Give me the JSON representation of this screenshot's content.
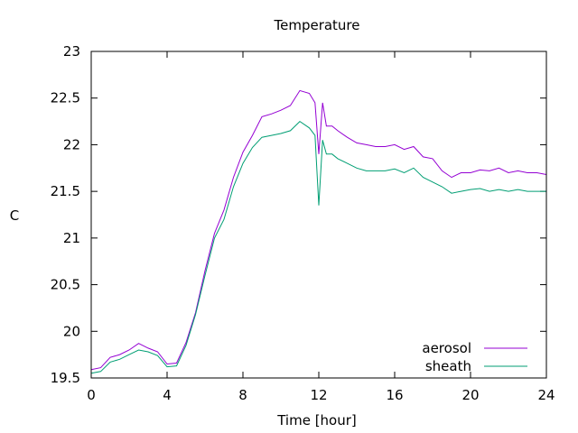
{
  "chart_data": {
    "type": "line",
    "title": "Temperature",
    "xlabel": "Time [hour]",
    "ylabel": "C",
    "xlim": [
      0,
      24
    ],
    "ylim": [
      19.5,
      23
    ],
    "xticks": [
      0,
      4,
      8,
      12,
      16,
      20,
      24
    ],
    "xtick_labels": [
      "0",
      "4",
      "8",
      "12",
      "16",
      "20",
      "24"
    ],
    "yticks": [
      19.5,
      20,
      20.5,
      21,
      21.5,
      22,
      22.5,
      23
    ],
    "ytick_labels": [
      "19.5",
      "20",
      "20.5",
      "21",
      "21.5",
      "22",
      "22.5",
      "23"
    ],
    "grid": false,
    "legend": "bottom-right",
    "series": [
      {
        "name": "aerosol",
        "color": "#9400d3",
        "x": [
          0,
          0.5,
          1,
          1.5,
          2,
          2.5,
          3,
          3.5,
          4,
          4.5,
          5,
          5.5,
          6,
          6.5,
          7,
          7.5,
          8,
          8.5,
          9,
          9.5,
          10,
          10.5,
          11,
          11.5,
          11.8,
          12,
          12.2,
          12.4,
          12.7,
          13,
          13.5,
          14,
          14.5,
          15,
          15.5,
          16,
          16.5,
          17,
          17.5,
          18,
          18.5,
          19,
          19.5,
          20,
          20.5,
          21,
          21.5,
          22,
          22.5,
          23,
          23.5,
          24
        ],
        "y": [
          19.59,
          19.61,
          19.72,
          19.75,
          19.8,
          19.87,
          19.82,
          19.78,
          19.65,
          19.66,
          19.88,
          20.2,
          20.65,
          21.05,
          21.3,
          21.65,
          21.92,
          22.1,
          22.3,
          22.33,
          22.37,
          22.42,
          22.58,
          22.55,
          22.45,
          21.9,
          22.45,
          22.2,
          22.2,
          22.15,
          22.08,
          22.02,
          22.0,
          21.98,
          21.98,
          22.0,
          21.95,
          21.98,
          21.87,
          21.85,
          21.72,
          21.65,
          21.7,
          21.7,
          21.73,
          21.72,
          21.75,
          21.7,
          21.72,
          21.7,
          21.7,
          21.68
        ]
      },
      {
        "name": "sheath",
        "color": "#009e73",
        "x": [
          0,
          0.5,
          1,
          1.5,
          2,
          2.5,
          3,
          3.5,
          4,
          4.5,
          5,
          5.5,
          6,
          6.5,
          7,
          7.5,
          8,
          8.5,
          9,
          9.5,
          10,
          10.5,
          11,
          11.5,
          11.8,
          12,
          12.2,
          12.4,
          12.7,
          13,
          13.5,
          14,
          14.5,
          15,
          15.5,
          16,
          16.5,
          17,
          17.5,
          18,
          18.5,
          19,
          19.5,
          20,
          20.5,
          21,
          21.5,
          22,
          22.5,
          23,
          23.5,
          24
        ],
        "y": [
          19.55,
          19.57,
          19.67,
          19.7,
          19.75,
          19.8,
          19.78,
          19.74,
          19.62,
          19.63,
          19.85,
          20.18,
          20.6,
          21.0,
          21.2,
          21.55,
          21.8,
          21.97,
          22.08,
          22.1,
          22.12,
          22.15,
          22.25,
          22.18,
          22.1,
          21.35,
          22.05,
          21.9,
          21.9,
          21.85,
          21.8,
          21.75,
          21.72,
          21.72,
          21.72,
          21.74,
          21.7,
          21.75,
          21.65,
          21.6,
          21.55,
          21.48,
          21.5,
          21.52,
          21.53,
          21.5,
          21.52,
          21.5,
          21.52,
          21.5,
          21.5,
          21.5
        ]
      }
    ]
  }
}
